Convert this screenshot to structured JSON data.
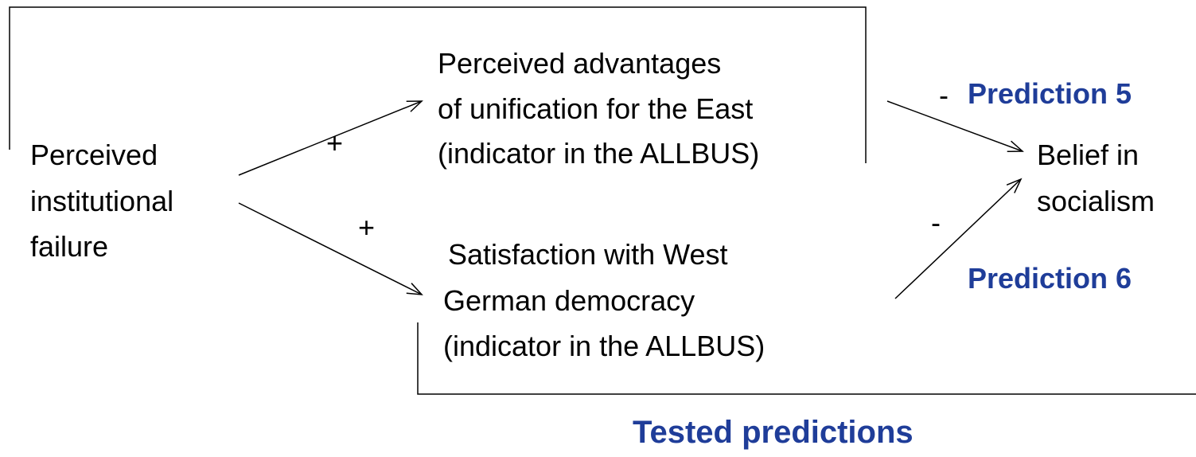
{
  "nodes": [
    {
      "lines": [
        "Perceived",
        "institutional",
        "failure"
      ]
    },
    {
      "lines": [
        "Perceived advantages",
        "of unification for the East",
        "(indicator in the ALLBUS)"
      ]
    },
    {
      "lines": [
        "Satisfaction with West",
        "German democracy",
        "(indicator in the ALLBUS)"
      ]
    },
    {
      "lines": [
        "Belief in",
        "socialism"
      ]
    }
  ],
  "edges": [
    {
      "label": "+"
    },
    {
      "label": "+"
    },
    {
      "label": "-"
    },
    {
      "label": "-"
    }
  ],
  "predictions": [
    "Prediction 5",
    "Prediction 6"
  ],
  "footer": "Tested predictions"
}
